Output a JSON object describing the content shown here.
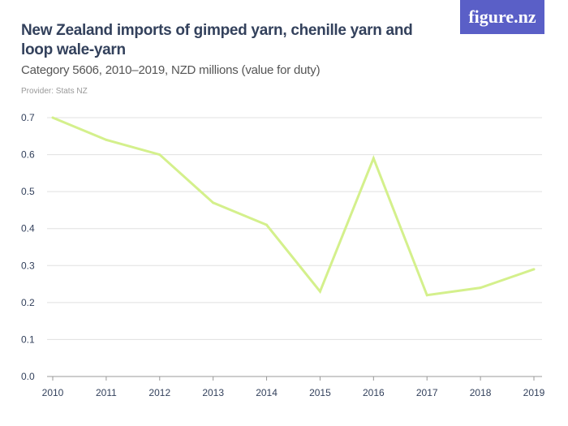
{
  "header": {
    "title": "New Zealand imports of gimped yarn, chenille yarn and loop wale-yarn",
    "subtitle": "Category 5606, 2010–2019, NZD millions (value for duty)",
    "provider": "Provider: Stats NZ",
    "logo": "figure.nz"
  },
  "colors": {
    "line": "#d4f08c",
    "grid": "#e0e0e0",
    "logo_bg": "#5a5fc7",
    "text": "#33415c"
  },
  "chart_data": {
    "type": "line",
    "title": "New Zealand imports of gimped yarn, chenille yarn and loop wale-yarn",
    "xlabel": "",
    "ylabel": "",
    "x": [
      2010,
      2011,
      2012,
      2013,
      2014,
      2015,
      2016,
      2017,
      2018,
      2019
    ],
    "series": [
      {
        "values": [
          0.7,
          0.64,
          0.6,
          0.47,
          0.41,
          0.23,
          0.59,
          0.22,
          0.24,
          0.29
        ]
      }
    ],
    "ylim": [
      0,
      0.7
    ],
    "yticks": [
      "0.0",
      "0.1",
      "0.2",
      "0.3",
      "0.4",
      "0.5",
      "0.6",
      "0.7"
    ],
    "grid": true
  }
}
